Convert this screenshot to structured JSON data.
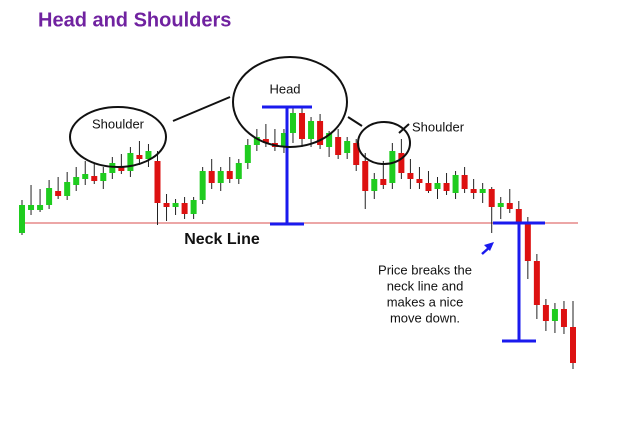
{
  "chart_data": {
    "type": "candlestick",
    "title": "Head and Shoulders",
    "annotations": {
      "left_shoulder": "Shoulder",
      "head": "Head",
      "right_shoulder": "Shoulder",
      "neckline": "Neck Line",
      "note": [
        "Price breaks the",
        "neck line and",
        "makes a nice",
        "move down."
      ]
    },
    "up_color": "#1fcc1f",
    "down_color": "#dd1111",
    "neckline_color": "#e07070",
    "measure_color": "#1a1aee",
    "ylim": [
      0,
      429
    ],
    "neckline": 206,
    "measures": [
      {
        "top": 322,
        "bottom": 205
      },
      {
        "top": 206,
        "bottom": 88
      }
    ],
    "candles": [
      {
        "open": 196,
        "high": 229,
        "low": 194,
        "close": 224
      },
      {
        "open": 219,
        "high": 244,
        "low": 214,
        "close": 224
      },
      {
        "open": 219,
        "high": 240,
        "low": 217,
        "close": 224
      },
      {
        "open": 224,
        "high": 249,
        "low": 220,
        "close": 241
      },
      {
        "open": 238,
        "high": 252,
        "low": 230,
        "close": 233
      },
      {
        "open": 233,
        "high": 257,
        "low": 229,
        "close": 247
      },
      {
        "open": 244,
        "high": 262,
        "low": 238,
        "close": 252
      },
      {
        "open": 250,
        "high": 268,
        "low": 244,
        "close": 255
      },
      {
        "open": 253,
        "high": 266,
        "low": 245,
        "close": 248
      },
      {
        "open": 248,
        "high": 262,
        "low": 240,
        "close": 256
      },
      {
        "open": 256,
        "high": 272,
        "low": 250,
        "close": 266
      },
      {
        "open": 262,
        "high": 275,
        "low": 255,
        "close": 258
      },
      {
        "open": 258,
        "high": 282,
        "low": 252,
        "close": 276
      },
      {
        "open": 274,
        "high": 288,
        "low": 264,
        "close": 270
      },
      {
        "open": 270,
        "high": 285,
        "low": 262,
        "close": 278
      },
      {
        "open": 268,
        "high": 278,
        "low": 204,
        "close": 226
      },
      {
        "open": 226,
        "high": 235,
        "low": 208,
        "close": 222
      },
      {
        "open": 222,
        "high": 230,
        "low": 214,
        "close": 226
      },
      {
        "open": 226,
        "high": 232,
        "low": 210,
        "close": 215
      },
      {
        "open": 215,
        "high": 232,
        "low": 210,
        "close": 229
      },
      {
        "open": 229,
        "high": 262,
        "low": 225,
        "close": 258
      },
      {
        "open": 258,
        "high": 270,
        "low": 240,
        "close": 246
      },
      {
        "open": 246,
        "high": 262,
        "low": 238,
        "close": 258
      },
      {
        "open": 258,
        "high": 272,
        "low": 246,
        "close": 250
      },
      {
        "open": 250,
        "high": 270,
        "low": 245,
        "close": 266
      },
      {
        "open": 266,
        "high": 290,
        "low": 260,
        "close": 284
      },
      {
        "open": 284,
        "high": 300,
        "low": 278,
        "close": 292
      },
      {
        "open": 290,
        "high": 305,
        "low": 282,
        "close": 286
      },
      {
        "open": 286,
        "high": 300,
        "low": 278,
        "close": 282
      },
      {
        "open": 282,
        "high": 300,
        "low": 276,
        "close": 296
      },
      {
        "open": 296,
        "high": 322,
        "low": 286,
        "close": 316
      },
      {
        "open": 316,
        "high": 323,
        "low": 282,
        "close": 290
      },
      {
        "open": 290,
        "high": 312,
        "low": 282,
        "close": 308
      },
      {
        "open": 308,
        "high": 315,
        "low": 280,
        "close": 284
      },
      {
        "open": 282,
        "high": 298,
        "low": 272,
        "close": 296
      },
      {
        "open": 292,
        "high": 300,
        "low": 270,
        "close": 274
      },
      {
        "open": 276,
        "high": 292,
        "low": 270,
        "close": 288
      },
      {
        "open": 286,
        "high": 290,
        "low": 258,
        "close": 264
      },
      {
        "open": 268,
        "high": 276,
        "low": 220,
        "close": 238
      },
      {
        "open": 238,
        "high": 256,
        "low": 230,
        "close": 250
      },
      {
        "open": 250,
        "high": 268,
        "low": 240,
        "close": 244
      },
      {
        "open": 246,
        "high": 286,
        "low": 240,
        "close": 278
      },
      {
        "open": 276,
        "high": 290,
        "low": 250,
        "close": 256
      },
      {
        "open": 256,
        "high": 270,
        "low": 240,
        "close": 250
      },
      {
        "open": 250,
        "high": 262,
        "low": 240,
        "close": 246
      },
      {
        "open": 246,
        "high": 258,
        "low": 236,
        "close": 238
      },
      {
        "open": 240,
        "high": 252,
        "low": 230,
        "close": 246
      },
      {
        "open": 246,
        "high": 256,
        "low": 234,
        "close": 238
      },
      {
        "open": 236,
        "high": 258,
        "low": 230,
        "close": 254
      },
      {
        "open": 254,
        "high": 262,
        "low": 236,
        "close": 240
      },
      {
        "open": 240,
        "high": 250,
        "low": 230,
        "close": 236
      },
      {
        "open": 236,
        "high": 246,
        "low": 226,
        "close": 240
      },
      {
        "open": 240,
        "high": 242,
        "low": 196,
        "close": 222
      },
      {
        "open": 222,
        "high": 232,
        "low": 210,
        "close": 226
      },
      {
        "open": 226,
        "high": 240,
        "low": 216,
        "close": 220
      },
      {
        "open": 220,
        "high": 228,
        "low": 200,
        "close": 206
      },
      {
        "open": 206,
        "high": 212,
        "low": 150,
        "close": 168
      },
      {
        "open": 168,
        "high": 175,
        "low": 110,
        "close": 124
      },
      {
        "open": 124,
        "high": 130,
        "low": 98,
        "close": 108
      },
      {
        "open": 108,
        "high": 126,
        "low": 96,
        "close": 120
      },
      {
        "open": 120,
        "high": 128,
        "low": 95,
        "close": 102
      },
      {
        "open": 102,
        "high": 128,
        "low": 60,
        "close": 66
      }
    ]
  }
}
